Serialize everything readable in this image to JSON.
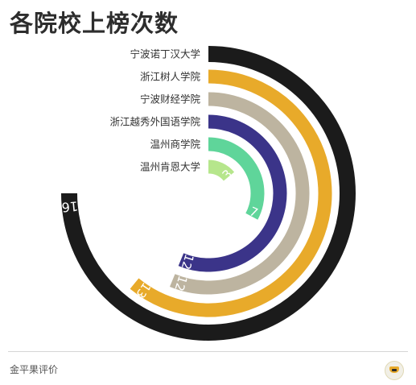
{
  "header": {
    "title": "各院校上榜次数"
  },
  "footer": {
    "source": "金平果评价"
  },
  "chart_data": {
    "type": "radial-bar",
    "title": "各院校上榜次数",
    "max_value": 16,
    "categories": [
      "宁波诺丁汉大学",
      "浙江树人学院",
      "宁波财经学院",
      "浙江越秀外国语学院",
      "温州商学院",
      "温州肯恩大学"
    ],
    "values": [
      16,
      13,
      12,
      12,
      7,
      3
    ],
    "colors": [
      "#1b1b1b",
      "#e8aa2a",
      "#bdb4a0",
      "#3b3489",
      "#5fd59a",
      "#b6e68c"
    ],
    "label_colors": [
      "#ffffff",
      "#ffffff",
      "#ffffff",
      "#ffffff",
      "#ffffff",
      "#ffffff"
    ]
  }
}
